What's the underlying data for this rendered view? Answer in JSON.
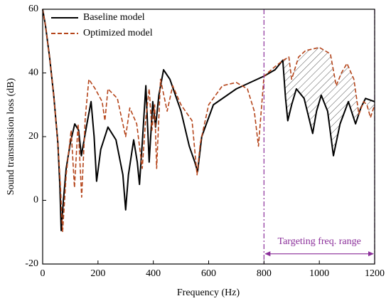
{
  "chart_data": {
    "type": "line",
    "xlabel": "Frequency (Hz)",
    "ylabel": "Sound transmission loss (dB)",
    "xlim": [
      0,
      1200
    ],
    "ylim": [
      -20,
      60
    ],
    "xticks": [
      0,
      200,
      400,
      600,
      800,
      1000,
      1200
    ],
    "yticks": [
      -20,
      0,
      20,
      40,
      60
    ],
    "legend": "upper left",
    "highlight_range": [
      800,
      1200
    ],
    "annotation": "Targeting freq. range",
    "series": [
      {
        "name": "Baseline model",
        "color": "#000000",
        "dash": "solid",
        "x": [
          0,
          10,
          25,
          40,
          55,
          62,
          67,
          75,
          85,
          100,
          116,
          130,
          140,
          160,
          175,
          186,
          195,
          210,
          236,
          265,
          290,
          300,
          310,
          329,
          342,
          350,
          360,
          373,
          385,
          398,
          408,
          420,
          437,
          460,
          500,
          530,
          550,
          560,
          575,
          617,
          700,
          800,
          840,
          868,
          878,
          886,
          900,
          917,
          945,
          976,
          990,
          1007,
          1030,
          1051,
          1075,
          1105,
          1131,
          1150,
          1167,
          1200
        ],
        "values": [
          60,
          55,
          45,
          33,
          18,
          5,
          -9.5,
          0,
          10,
          18,
          24,
          22,
          14,
          24,
          31,
          20,
          6,
          16,
          23,
          19,
          8,
          -3,
          8,
          19,
          12,
          5,
          18,
          36,
          12,
          31,
          23,
          33,
          41,
          38,
          28,
          17,
          12,
          9,
          20,
          30,
          35,
          39,
          41,
          44,
          32,
          25,
          30,
          35,
          32,
          21,
          28,
          33,
          28,
          14,
          24,
          31,
          24,
          29,
          32,
          31
        ]
      },
      {
        "name": "Optimized model",
        "color": "#b5451b",
        "dash": "dashed",
        "x": [
          0,
          10,
          25,
          40,
          55,
          64,
          72,
          85,
          103,
          115,
          128,
          141,
          154,
          167,
          190,
          215,
          225,
          236,
          270,
          300,
          315,
          340,
          360,
          372,
          385,
          395,
          405,
          412,
          426,
          450,
          470,
          500,
          540,
          558,
          570,
          600,
          650,
          700,
          740,
          765,
          780,
          790,
          800,
          840,
          870,
          890,
          900,
          925,
          950,
          1000,
          1040,
          1061,
          1080,
          1100,
          1125,
          1143,
          1160,
          1172,
          1185,
          1200
        ],
        "values": [
          60,
          55,
          45,
          33,
          18,
          5,
          -10,
          8,
          22,
          4,
          24,
          1,
          26,
          38,
          35,
          31,
          25,
          35,
          32,
          20,
          29,
          24,
          10,
          25,
          35,
          22,
          30,
          10,
          38,
          28,
          36,
          30,
          25,
          8,
          18,
          30,
          36,
          37,
          35,
          28,
          17,
          28,
          39,
          42,
          44,
          45,
          38,
          45,
          47,
          48,
          46,
          36,
          40,
          43,
          38,
          27,
          31,
          30,
          26,
          30
        ]
      }
    ]
  }
}
